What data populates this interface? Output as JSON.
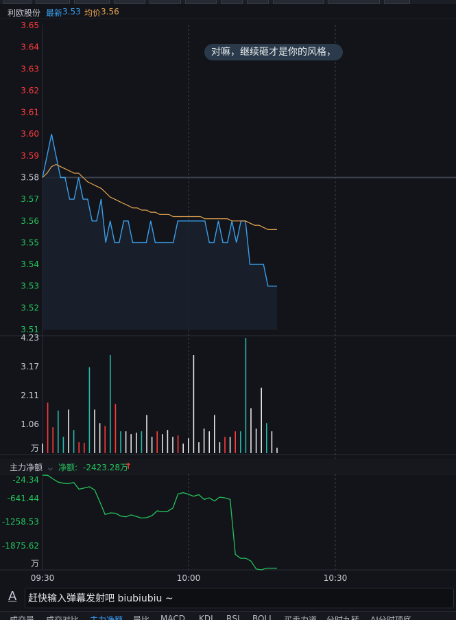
{
  "header": {
    "stock_name": "利欧股份",
    "latest_label": "最新",
    "latest_value": "3.53",
    "avg_label": "均价",
    "avg_value": "3.56"
  },
  "danmu_bubble": "对嘛，继续砸才是你的风格，",
  "flow": {
    "selector_label": "主力净额",
    "net_label": "净额:",
    "net_value": "-2423.28万"
  },
  "input": {
    "placeholder": "赶快输入弹幕发射吧 biubiubiu ~"
  },
  "tabs": [
    "成交量",
    "成交对比",
    "主力净额",
    "量比",
    "MACD",
    "KDJ",
    "RSI",
    "BOLL",
    "买卖力道",
    "分时九转",
    "AI分时顶底"
  ],
  "active_tab": 2,
  "colors": {
    "price": "#3a9ee8",
    "avg": "#e8a64f",
    "up": "#ff3b3b",
    "down": "#26c25c",
    "flow": "#26c25c"
  },
  "chart_data": [
    {
      "type": "line",
      "name": "intraday-price",
      "y_ticks": [
        "3.65",
        "3.64",
        "3.63",
        "3.62",
        "3.61",
        "3.60",
        "3.59",
        "3.58",
        "3.57",
        "3.56",
        "3.55",
        "3.54",
        "3.53",
        "3.52",
        "3.51"
      ],
      "ylim": [
        3.51,
        3.65
      ],
      "prev_close": 3.58,
      "x_minutes_total": 120,
      "price": [
        3.58,
        3.59,
        3.6,
        3.59,
        3.58,
        3.58,
        3.57,
        3.57,
        3.58,
        3.57,
        3.57,
        3.56,
        3.56,
        3.57,
        3.55,
        3.56,
        3.55,
        3.55,
        3.56,
        3.56,
        3.55,
        3.55,
        3.55,
        3.55,
        3.56,
        3.55,
        3.55,
        3.55,
        3.55,
        3.55,
        3.56,
        3.56,
        3.56,
        3.56,
        3.56,
        3.56,
        3.56,
        3.55,
        3.55,
        3.56,
        3.55,
        3.55,
        3.56,
        3.55,
        3.56,
        3.56,
        3.54,
        3.54,
        3.54,
        3.54,
        3.53,
        3.53,
        3.53
      ],
      "avg": [
        3.58,
        3.582,
        3.585,
        3.586,
        3.585,
        3.584,
        3.583,
        3.582,
        3.582,
        3.58,
        3.578,
        3.577,
        3.576,
        3.575,
        3.573,
        3.571,
        3.57,
        3.569,
        3.568,
        3.567,
        3.566,
        3.566,
        3.565,
        3.565,
        3.564,
        3.564,
        3.563,
        3.563,
        3.563,
        3.562,
        3.562,
        3.562,
        3.562,
        3.562,
        3.562,
        3.562,
        3.561,
        3.561,
        3.561,
        3.561,
        3.561,
        3.561,
        3.56,
        3.56,
        3.56,
        3.56,
        3.559,
        3.558,
        3.558,
        3.557,
        3.556,
        3.556,
        3.556
      ]
    },
    {
      "type": "bar",
      "name": "volume",
      "y_ticks": [
        "4.23",
        "3.17",
        "2.11",
        "1.06"
      ],
      "unit": "万",
      "ylim": [
        0,
        4.23
      ],
      "values": [
        0.35,
        1.85,
        0.95,
        1.56,
        0.6,
        1.6,
        0.85,
        0.4,
        0.38,
        3.15,
        1.6,
        1.1,
        1.0,
        3.6,
        1.8,
        0.8,
        0.8,
        0.7,
        0.75,
        0.8,
        1.4,
        0.6,
        0.8,
        0.7,
        0.85,
        0.6,
        0.65,
        0.35,
        0.55,
        3.6,
        0.4,
        0.9,
        0.8,
        1.4,
        0.4,
        0.6,
        0.6,
        0.8,
        0.8,
        4.23,
        1.65,
        0.9,
        2.4,
        1.1,
        0.8,
        0.2
      ],
      "colors": [
        "w",
        "r",
        "r",
        "g",
        "g",
        "w",
        "g",
        "r",
        "r",
        "g",
        "w",
        "w",
        "r",
        "g",
        "r",
        "g",
        "w",
        "w",
        "w",
        "g",
        "w",
        "w",
        "r",
        "w",
        "w",
        "w",
        "r",
        "w",
        "w",
        "w",
        "w",
        "w",
        "w",
        "w",
        "w",
        "r",
        "w",
        "r",
        "g",
        "g",
        "w",
        "w",
        "w",
        "g",
        "w",
        "w"
      ]
    },
    {
      "type": "line",
      "name": "main-net-flow",
      "y_ticks": [
        "-24.34",
        "-641.44",
        "-1258.53",
        "-1875.62"
      ],
      "unit": "万",
      "ylim": [
        -2423.28,
        -24.34
      ],
      "values": [
        -24.34,
        -30,
        -120,
        -200,
        -230,
        -240,
        -210,
        -380,
        -350,
        -320,
        -400,
        -700,
        -1020,
        -980,
        -990,
        -1060,
        -1080,
        -1030,
        -1070,
        -1110,
        -1100,
        -1050,
        -930,
        -950,
        -940,
        -860,
        -500,
        -470,
        -510,
        -560,
        -520,
        -640,
        -600,
        -680,
        -580,
        -600,
        -640,
        -2030,
        -2130,
        -2130,
        -2200,
        -2400,
        -2423.28,
        -2380,
        -2380,
        -2380
      ],
      "x_ticks": [
        "09:30",
        "10:00",
        "10:30"
      ]
    }
  ]
}
